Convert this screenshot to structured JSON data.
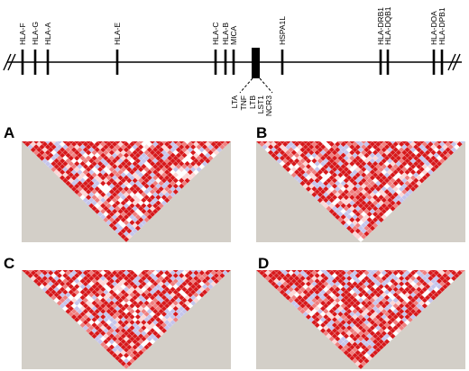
{
  "map": {
    "genes_top": [
      "HLA-F",
      "HLA-G",
      "HLA-A",
      "HLA-E",
      "HLA-C",
      "HLA-B",
      "MICA",
      "HSPA1L",
      "HLA-DRB1",
      "HLA-DQB1",
      "HLA-DOA",
      "HLA-DPB1"
    ],
    "genes_bottom": [
      "LTA",
      "TNF",
      "LTB",
      "LST1",
      "NCR3"
    ]
  },
  "panels": [
    {
      "label": "A",
      "seed": 11
    },
    {
      "label": "B",
      "seed": 23
    },
    {
      "label": "C",
      "seed": 37
    },
    {
      "label": "D",
      "seed": 53
    }
  ],
  "colors": {
    "strong_ld": "#d7191c",
    "moderate_ld": "#f08080",
    "weak_ld": "#fcd7d7",
    "low_lod": "#c5c5ec",
    "none": "#ffffff",
    "background": "#d3cfc8"
  }
}
